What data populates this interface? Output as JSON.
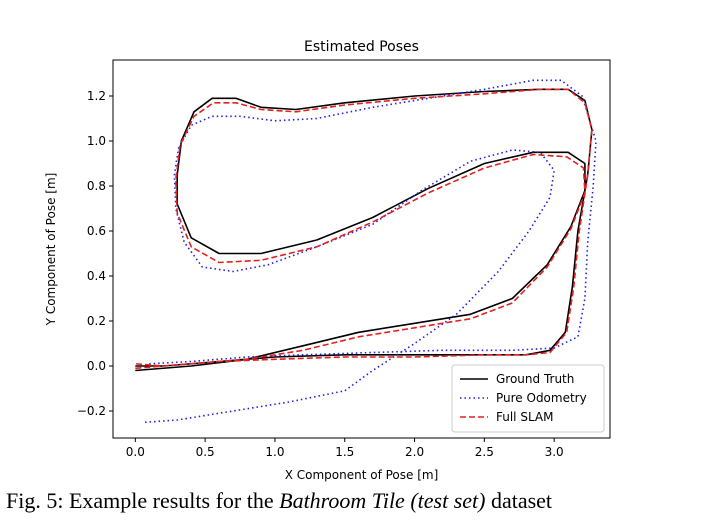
{
  "chart_data": {
    "type": "line",
    "title": "Estimated Poses",
    "xlabel": "X Component of Pose [m]",
    "ylabel": "Y Component of Pose [m]",
    "xlim": [
      -0.16,
      3.4
    ],
    "ylim": [
      -0.32,
      1.36
    ],
    "xticks": [
      0.0,
      0.5,
      1.0,
      1.5,
      2.0,
      2.5,
      3.0
    ],
    "xtick_labels": [
      "0.0",
      "0.5",
      "1.0",
      "1.5",
      "2.0",
      "2.5",
      "3.0"
    ],
    "yticks": [
      -0.2,
      0.0,
      0.2,
      0.4,
      0.6,
      0.8,
      1.0,
      1.2
    ],
    "ytick_labels": [
      "−0.2",
      "0.0",
      "0.2",
      "0.4",
      "0.6",
      "0.8",
      "1.0",
      "1.2"
    ],
    "legend_position": "lower-right",
    "grid": false,
    "series": [
      {
        "name": "Ground Truth",
        "color": "#000000",
        "style": "solid",
        "points": [
          [
            0.0,
            -0.02
          ],
          [
            0.4,
            0.0
          ],
          [
            0.8,
            0.03
          ],
          [
            1.2,
            0.09
          ],
          [
            1.6,
            0.15
          ],
          [
            2.0,
            0.19
          ],
          [
            2.4,
            0.23
          ],
          [
            2.7,
            0.3
          ],
          [
            2.95,
            0.45
          ],
          [
            3.12,
            0.62
          ],
          [
            3.22,
            0.78
          ],
          [
            3.22,
            0.9
          ],
          [
            3.1,
            0.95
          ],
          [
            2.85,
            0.95
          ],
          [
            2.5,
            0.9
          ],
          [
            2.1,
            0.79
          ],
          [
            1.7,
            0.66
          ],
          [
            1.3,
            0.56
          ],
          [
            0.9,
            0.5
          ],
          [
            0.6,
            0.5
          ],
          [
            0.4,
            0.57
          ],
          [
            0.3,
            0.72
          ],
          [
            0.3,
            0.85
          ],
          [
            0.33,
            1.0
          ],
          [
            0.42,
            1.13
          ],
          [
            0.55,
            1.19
          ],
          [
            0.72,
            1.19
          ],
          [
            0.9,
            1.15
          ],
          [
            1.15,
            1.14
          ],
          [
            1.5,
            1.17
          ],
          [
            2.0,
            1.2
          ],
          [
            2.5,
            1.22
          ],
          [
            2.9,
            1.23
          ],
          [
            3.1,
            1.23
          ],
          [
            3.22,
            1.18
          ],
          [
            3.27,
            1.05
          ],
          [
            3.24,
            0.85
          ],
          [
            3.17,
            0.6
          ],
          [
            3.13,
            0.35
          ],
          [
            3.08,
            0.15
          ],
          [
            2.97,
            0.07
          ],
          [
            2.8,
            0.05
          ],
          [
            2.5,
            0.05
          ],
          [
            2.0,
            0.05
          ],
          [
            1.5,
            0.05
          ],
          [
            1.0,
            0.04
          ],
          [
            0.6,
            0.02
          ],
          [
            0.2,
            0.0
          ],
          [
            0.0,
            0.0
          ]
        ]
      },
      {
        "name": "Pure Odometry",
        "color": "#1f1fe6",
        "style": "dotted",
        "points": [
          [
            0.07,
            -0.25
          ],
          [
            0.3,
            -0.24
          ],
          [
            0.7,
            -0.2
          ],
          [
            1.1,
            -0.16
          ],
          [
            1.5,
            -0.11
          ],
          [
            1.7,
            -0.02
          ],
          [
            2.0,
            0.1
          ],
          [
            2.3,
            0.23
          ],
          [
            2.6,
            0.42
          ],
          [
            2.82,
            0.6
          ],
          [
            2.97,
            0.75
          ],
          [
            3.0,
            0.87
          ],
          [
            2.9,
            0.95
          ],
          [
            2.7,
            0.96
          ],
          [
            2.4,
            0.91
          ],
          [
            2.05,
            0.78
          ],
          [
            1.7,
            0.63
          ],
          [
            1.3,
            0.53
          ],
          [
            0.95,
            0.45
          ],
          [
            0.7,
            0.42
          ],
          [
            0.48,
            0.44
          ],
          [
            0.35,
            0.55
          ],
          [
            0.29,
            0.7
          ],
          [
            0.28,
            0.85
          ],
          [
            0.31,
            0.97
          ],
          [
            0.4,
            1.07
          ],
          [
            0.55,
            1.11
          ],
          [
            0.75,
            1.11
          ],
          [
            1.0,
            1.09
          ],
          [
            1.3,
            1.1
          ],
          [
            1.7,
            1.15
          ],
          [
            2.1,
            1.19
          ],
          [
            2.5,
            1.23
          ],
          [
            2.85,
            1.27
          ],
          [
            3.05,
            1.27
          ],
          [
            3.2,
            1.2
          ],
          [
            3.3,
            1.0
          ],
          [
            3.28,
            0.8
          ],
          [
            3.24,
            0.55
          ],
          [
            3.22,
            0.3
          ],
          [
            3.17,
            0.13
          ],
          [
            3.0,
            0.08
          ],
          [
            2.7,
            0.07
          ],
          [
            2.2,
            0.07
          ],
          [
            1.7,
            0.06
          ],
          [
            1.2,
            0.05
          ],
          [
            0.8,
            0.04
          ],
          [
            0.4,
            0.02
          ],
          [
            0.1,
            0.01
          ]
        ]
      },
      {
        "name": "Full SLAM",
        "color": "#e61f1f",
        "style": "dashed",
        "points": [
          [
            0.0,
            -0.01
          ],
          [
            0.4,
            0.01
          ],
          [
            0.8,
            0.03
          ],
          [
            1.2,
            0.07
          ],
          [
            1.6,
            0.13
          ],
          [
            2.0,
            0.17
          ],
          [
            2.4,
            0.21
          ],
          [
            2.7,
            0.28
          ],
          [
            2.95,
            0.44
          ],
          [
            3.12,
            0.61
          ],
          [
            3.22,
            0.77
          ],
          [
            3.21,
            0.88
          ],
          [
            3.09,
            0.93
          ],
          [
            2.85,
            0.94
          ],
          [
            2.5,
            0.88
          ],
          [
            2.1,
            0.77
          ],
          [
            1.7,
            0.64
          ],
          [
            1.3,
            0.53
          ],
          [
            0.9,
            0.47
          ],
          [
            0.6,
            0.46
          ],
          [
            0.4,
            0.53
          ],
          [
            0.3,
            0.68
          ],
          [
            0.29,
            0.83
          ],
          [
            0.32,
            0.98
          ],
          [
            0.42,
            1.11
          ],
          [
            0.56,
            1.17
          ],
          [
            0.72,
            1.17
          ],
          [
            0.9,
            1.14
          ],
          [
            1.15,
            1.13
          ],
          [
            1.5,
            1.16
          ],
          [
            2.0,
            1.19
          ],
          [
            2.5,
            1.21
          ],
          [
            2.9,
            1.23
          ],
          [
            3.1,
            1.23
          ],
          [
            3.22,
            1.17
          ],
          [
            3.27,
            1.05
          ],
          [
            3.24,
            0.85
          ],
          [
            3.18,
            0.6
          ],
          [
            3.14,
            0.35
          ],
          [
            3.09,
            0.15
          ],
          [
            2.97,
            0.06
          ],
          [
            2.8,
            0.05
          ],
          [
            2.5,
            0.05
          ],
          [
            2.0,
            0.04
          ],
          [
            1.5,
            0.04
          ],
          [
            1.0,
            0.03
          ],
          [
            0.6,
            0.02
          ],
          [
            0.2,
            0.0
          ],
          [
            0.0,
            0.01
          ]
        ]
      }
    ]
  },
  "caption": {
    "prefix": "Fig. 5: Example results for the ",
    "emphasis": "Bathroom Tile (test set)",
    "suffix": " dataset"
  }
}
